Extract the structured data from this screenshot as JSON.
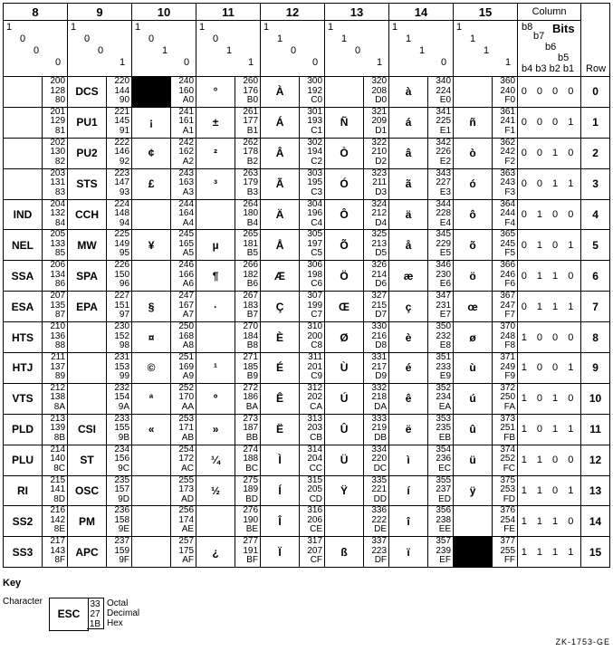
{
  "header": {
    "column_label": "Column",
    "bits_label": "Bits",
    "row_label": "Row",
    "bit_names_top": [
      "b8",
      "b7",
      "b6",
      "b5"
    ],
    "bit_names_bottom": "b4 b3 b2 b1"
  },
  "reserved_color": "#000000",
  "columns": [
    {
      "number": "8",
      "bits": [
        "1",
        "0",
        "0",
        "0"
      ],
      "chars": [
        "",
        "",
        "",
        "",
        "IND",
        "NEL",
        "SSA",
        "ESA",
        "HTS",
        "HTJ",
        "VTS",
        "PLD",
        "PLU",
        "RI",
        "SS2",
        "SS3"
      ],
      "octal": [
        "200",
        "201",
        "202",
        "203",
        "204",
        "205",
        "206",
        "207",
        "210",
        "211",
        "212",
        "213",
        "214",
        "215",
        "216",
        "217"
      ],
      "decimal": [
        "128",
        "129",
        "130",
        "131",
        "132",
        "133",
        "134",
        "135",
        "136",
        "137",
        "138",
        "139",
        "140",
        "141",
        "142",
        "143"
      ],
      "hex": [
        "80",
        "81",
        "82",
        "83",
        "84",
        "85",
        "86",
        "87",
        "88",
        "89",
        "8A",
        "8B",
        "8C",
        "8D",
        "8E",
        "8F"
      ],
      "reserved_rows": []
    },
    {
      "number": "9",
      "bits": [
        "1",
        "0",
        "0",
        "1"
      ],
      "chars": [
        "DCS",
        "PU1",
        "PU2",
        "STS",
        "CCH",
        "MW",
        "SPA",
        "EPA",
        "",
        "",
        "",
        "CSI",
        "ST",
        "OSC",
        "PM",
        "APC"
      ],
      "octal": [
        "220",
        "221",
        "222",
        "223",
        "224",
        "225",
        "226",
        "227",
        "230",
        "231",
        "232",
        "233",
        "234",
        "235",
        "236",
        "237"
      ],
      "decimal": [
        "144",
        "145",
        "146",
        "147",
        "148",
        "149",
        "150",
        "151",
        "152",
        "153",
        "154",
        "155",
        "156",
        "157",
        "158",
        "159"
      ],
      "hex": [
        "90",
        "91",
        "92",
        "93",
        "94",
        "95",
        "96",
        "97",
        "98",
        "99",
        "9A",
        "9B",
        "9C",
        "9D",
        "9E",
        "9F"
      ],
      "reserved_rows": []
    },
    {
      "number": "10",
      "bits": [
        "1",
        "0",
        "1",
        "0"
      ],
      "chars": [
        "",
        "¡",
        "¢",
        "£",
        "",
        "¥",
        "",
        "§",
        "¤",
        "©",
        "ª",
        "«",
        "",
        "",
        "",
        ""
      ],
      "octal": [
        "240",
        "241",
        "242",
        "243",
        "244",
        "245",
        "246",
        "247",
        "250",
        "251",
        "252",
        "253",
        "254",
        "255",
        "256",
        "257"
      ],
      "decimal": [
        "160",
        "161",
        "162",
        "163",
        "164",
        "165",
        "166",
        "167",
        "168",
        "169",
        "170",
        "171",
        "172",
        "173",
        "174",
        "175"
      ],
      "hex": [
        "A0",
        "A1",
        "A2",
        "A3",
        "A4",
        "A5",
        "A6",
        "A7",
        "A8",
        "A9",
        "AA",
        "AB",
        "AC",
        "AD",
        "AE",
        "AF"
      ],
      "reserved_rows": [
        0
      ]
    },
    {
      "number": "11",
      "bits": [
        "1",
        "0",
        "1",
        "1"
      ],
      "chars": [
        "°",
        "±",
        "²",
        "³",
        "",
        "µ",
        "¶",
        "·",
        "",
        "¹",
        "º",
        "»",
        "¼",
        "½",
        "",
        "¿"
      ],
      "octal": [
        "260",
        "261",
        "262",
        "263",
        "264",
        "265",
        "266",
        "267",
        "270",
        "271",
        "272",
        "273",
        "274",
        "275",
        "276",
        "277"
      ],
      "decimal": [
        "176",
        "177",
        "178",
        "179",
        "180",
        "181",
        "182",
        "183",
        "184",
        "185",
        "186",
        "187",
        "188",
        "189",
        "190",
        "191"
      ],
      "hex": [
        "B0",
        "B1",
        "B2",
        "B3",
        "B4",
        "B5",
        "B6",
        "B7",
        "B8",
        "B9",
        "BA",
        "BB",
        "BC",
        "BD",
        "BE",
        "BF"
      ],
      "reserved_rows": []
    },
    {
      "number": "12",
      "bits": [
        "1",
        "1",
        "0",
        "0"
      ],
      "chars": [
        "À",
        "Á",
        "Â",
        "Ã",
        "Ä",
        "Å",
        "Æ",
        "Ç",
        "È",
        "É",
        "Ê",
        "Ë",
        "Ì",
        "Í",
        "Î",
        "Ï"
      ],
      "octal": [
        "300",
        "301",
        "302",
        "303",
        "304",
        "305",
        "306",
        "307",
        "310",
        "311",
        "312",
        "313",
        "314",
        "315",
        "316",
        "317"
      ],
      "decimal": [
        "192",
        "193",
        "194",
        "195",
        "196",
        "197",
        "198",
        "199",
        "200",
        "201",
        "202",
        "203",
        "204",
        "205",
        "206",
        "207"
      ],
      "hex": [
        "C0",
        "C1",
        "C2",
        "C3",
        "C4",
        "C5",
        "C6",
        "C7",
        "C8",
        "C9",
        "CA",
        "CB",
        "CC",
        "CD",
        "CE",
        "CF"
      ],
      "reserved_rows": []
    },
    {
      "number": "13",
      "bits": [
        "1",
        "1",
        "0",
        "1"
      ],
      "chars": [
        "",
        "Ñ",
        "Ò",
        "Ó",
        "Ô",
        "Õ",
        "Ö",
        "Œ",
        "Ø",
        "Ù",
        "Ú",
        "Û",
        "Ü",
        "Ÿ",
        "",
        "ß"
      ],
      "octal": [
        "320",
        "321",
        "322",
        "323",
        "324",
        "325",
        "326",
        "327",
        "330",
        "331",
        "332",
        "333",
        "334",
        "335",
        "336",
        "337"
      ],
      "decimal": [
        "208",
        "209",
        "210",
        "211",
        "212",
        "213",
        "214",
        "215",
        "216",
        "217",
        "218",
        "219",
        "220",
        "221",
        "222",
        "223"
      ],
      "hex": [
        "D0",
        "D1",
        "D2",
        "D3",
        "D4",
        "D5",
        "D6",
        "D7",
        "D8",
        "D9",
        "DA",
        "DB",
        "DC",
        "DD",
        "DE",
        "DF"
      ],
      "reserved_rows": []
    },
    {
      "number": "14",
      "bits": [
        "1",
        "1",
        "1",
        "0"
      ],
      "chars": [
        "à",
        "á",
        "â",
        "ã",
        "ä",
        "å",
        "æ",
        "ç",
        "è",
        "é",
        "ê",
        "ë",
        "ì",
        "í",
        "î",
        "ï"
      ],
      "octal": [
        "340",
        "341",
        "342",
        "343",
        "344",
        "345",
        "346",
        "347",
        "350",
        "351",
        "352",
        "353",
        "354",
        "355",
        "356",
        "357"
      ],
      "decimal": [
        "224",
        "225",
        "226",
        "227",
        "228",
        "229",
        "230",
        "231",
        "232",
        "233",
        "234",
        "235",
        "236",
        "237",
        "238",
        "239"
      ],
      "hex": [
        "E0",
        "E1",
        "E2",
        "E3",
        "E4",
        "E5",
        "E6",
        "E7",
        "E8",
        "E9",
        "EA",
        "EB",
        "EC",
        "ED",
        "EE",
        "EF"
      ],
      "reserved_rows": []
    },
    {
      "number": "15",
      "bits": [
        "1",
        "1",
        "1",
        "1"
      ],
      "chars": [
        "",
        "ñ",
        "ò",
        "ó",
        "ô",
        "õ",
        "ö",
        "œ",
        "ø",
        "ù",
        "ú",
        "û",
        "ü",
        "ÿ",
        "",
        ""
      ],
      "octal": [
        "360",
        "361",
        "362",
        "363",
        "364",
        "365",
        "366",
        "367",
        "370",
        "371",
        "372",
        "373",
        "374",
        "375",
        "376",
        "377"
      ],
      "decimal": [
        "240",
        "241",
        "242",
        "243",
        "244",
        "245",
        "246",
        "247",
        "248",
        "249",
        "250",
        "251",
        "252",
        "253",
        "254",
        "255"
      ],
      "hex": [
        "F0",
        "F1",
        "F2",
        "F3",
        "F4",
        "F5",
        "F6",
        "F7",
        "F8",
        "F9",
        "FA",
        "FB",
        "FC",
        "FD",
        "FE",
        "FF"
      ],
      "reserved_rows": [
        15
      ]
    }
  ],
  "rows": [
    {
      "row": "0",
      "bits": "0 0 0 0"
    },
    {
      "row": "1",
      "bits": "0 0 0 1"
    },
    {
      "row": "2",
      "bits": "0 0 1 0"
    },
    {
      "row": "3",
      "bits": "0 0 1 1"
    },
    {
      "row": "4",
      "bits": "0 1 0 0"
    },
    {
      "row": "5",
      "bits": "0 1 0 1"
    },
    {
      "row": "6",
      "bits": "0 1 1 0"
    },
    {
      "row": "7",
      "bits": "0 1 1 1"
    },
    {
      "row": "8",
      "bits": "1 0 0 0"
    },
    {
      "row": "9",
      "bits": "1 0 0 1"
    },
    {
      "row": "10",
      "bits": "1 0 1 0"
    },
    {
      "row": "11",
      "bits": "1 0 1 1"
    },
    {
      "row": "12",
      "bits": "1 1 0 0"
    },
    {
      "row": "13",
      "bits": "1 1 0 1"
    },
    {
      "row": "14",
      "bits": "1 1 1 0"
    },
    {
      "row": "15",
      "bits": "1 1 1 1"
    }
  ],
  "key": {
    "title": "Key",
    "character_label": "Character",
    "example_char": "ESC",
    "octal": "33",
    "decimal": "27",
    "hex": "1B",
    "octal_label": "Octal",
    "decimal_label": "Decimal",
    "hex_label": "Hex"
  },
  "figure_id": "ZK-1753-GE"
}
